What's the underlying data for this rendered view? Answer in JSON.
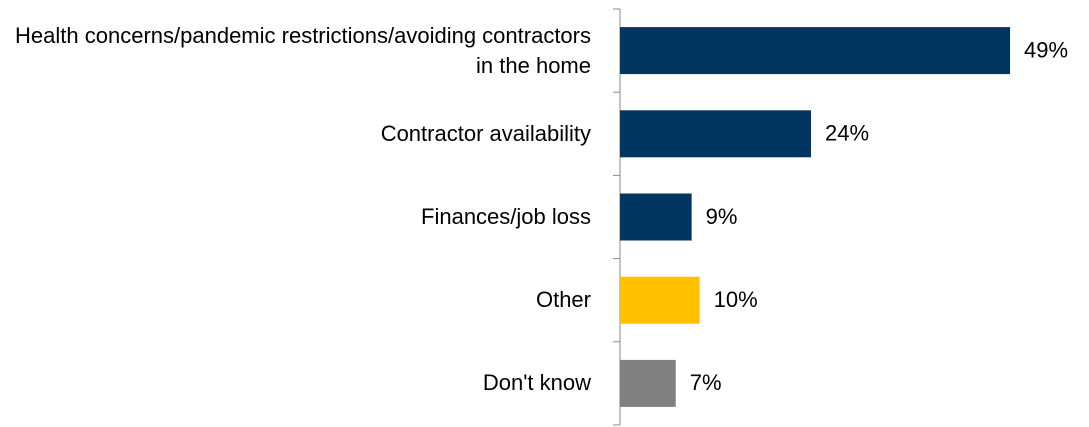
{
  "chart_data": {
    "type": "bar",
    "orientation": "horizontal",
    "categories": [
      "Health concerns/pandemic restrictions/avoiding contractors in the home",
      "Contractor availability",
      "Finances/job loss",
      "Other",
      "Don't know"
    ],
    "values": [
      49,
      24,
      9,
      10,
      7
    ],
    "value_labels": [
      "49%",
      "24%",
      "9%",
      "10%",
      "7%"
    ],
    "colors": [
      "#003660",
      "#003660",
      "#003660",
      "#ffc000",
      "#808080"
    ]
  }
}
